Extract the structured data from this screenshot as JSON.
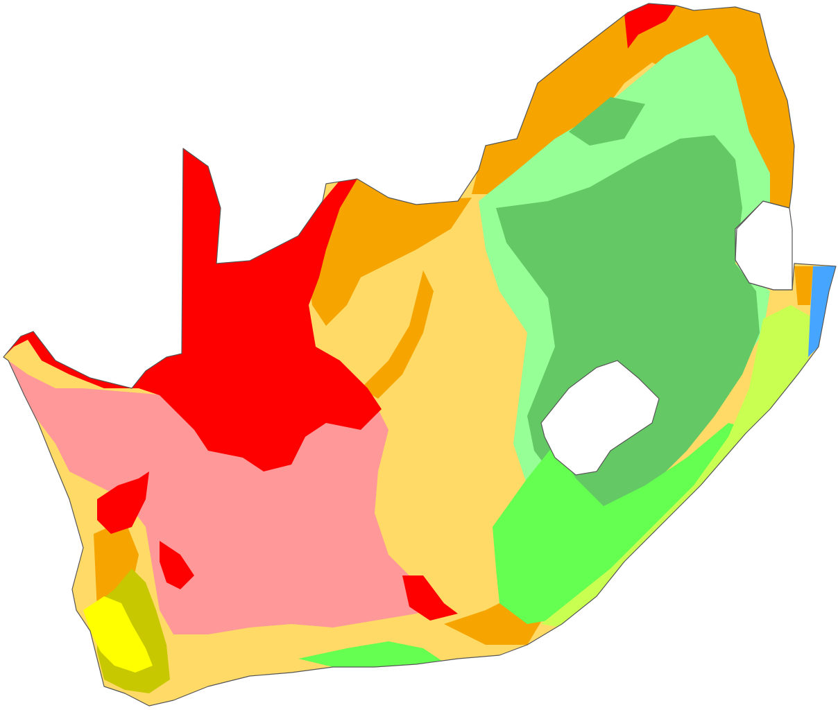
{
  "map": {
    "zone_colors": {
      "BWh": "#ff0000",
      "BWk": "#ff9999",
      "BSh": "#f5a400",
      "BSk": "#ffda66",
      "Csa": "#ffff00",
      "Csb": "#c8c800",
      "Cwa": "#96ff96",
      "Cwb": "#64c864",
      "Cfa": "#c8ff50",
      "Cfb": "#64ff50",
      "Aw": "#46a5ff"
    }
  }
}
